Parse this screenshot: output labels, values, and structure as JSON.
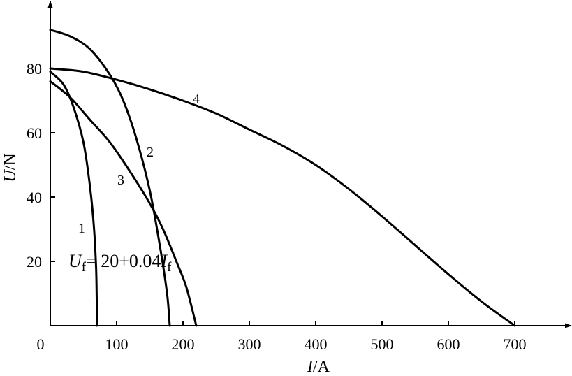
{
  "chart_data": {
    "type": "line",
    "xlabel": {
      "var": "I",
      "unit": "/A"
    },
    "ylabel": {
      "var": "U",
      "unit": "/N"
    },
    "xlim": [
      0,
      780
    ],
    "ylim": [
      0,
      100
    ],
    "x_ticks": [
      0,
      100,
      200,
      300,
      400,
      500,
      600,
      700
    ],
    "y_ticks": [
      20,
      40,
      60,
      80
    ],
    "origin_label": "0",
    "grid": false,
    "legend": "none",
    "annotation": {
      "u": "U",
      "sub1": "f",
      "mid": "= 20+0.04",
      "i": "I",
      "sub2": "f"
    },
    "series": [
      {
        "label": "1",
        "points": [
          [
            0,
            79
          ],
          [
            20,
            75
          ],
          [
            35,
            68
          ],
          [
            50,
            57
          ],
          [
            60,
            43
          ],
          [
            66,
            30
          ],
          [
            69,
            18
          ],
          [
            70,
            8
          ],
          [
            70,
            0
          ]
        ]
      },
      {
        "label": "2",
        "points": [
          [
            0,
            92
          ],
          [
            30,
            90
          ],
          [
            60,
            86
          ],
          [
            90,
            78
          ],
          [
            110,
            70
          ],
          [
            130,
            58
          ],
          [
            150,
            42
          ],
          [
            165,
            25
          ],
          [
            176,
            10
          ],
          [
            180,
            0
          ]
        ]
      },
      {
        "label": "3",
        "points": [
          [
            0,
            76
          ],
          [
            30,
            71
          ],
          [
            60,
            64
          ],
          [
            90,
            57
          ],
          [
            120,
            48
          ],
          [
            150,
            38
          ],
          [
            170,
            30
          ],
          [
            190,
            20
          ],
          [
            205,
            12
          ],
          [
            220,
            0
          ]
        ]
      },
      {
        "label": "4",
        "points": [
          [
            0,
            80
          ],
          [
            50,
            79
          ],
          [
            100,
            76.5
          ],
          [
            150,
            73.5
          ],
          [
            200,
            70
          ],
          [
            250,
            66
          ],
          [
            300,
            61
          ],
          [
            350,
            56
          ],
          [
            400,
            50
          ],
          [
            450,
            42.5
          ],
          [
            500,
            34
          ],
          [
            550,
            25
          ],
          [
            600,
            16
          ],
          [
            650,
            7.5
          ],
          [
            700,
            0
          ]
        ]
      }
    ]
  }
}
